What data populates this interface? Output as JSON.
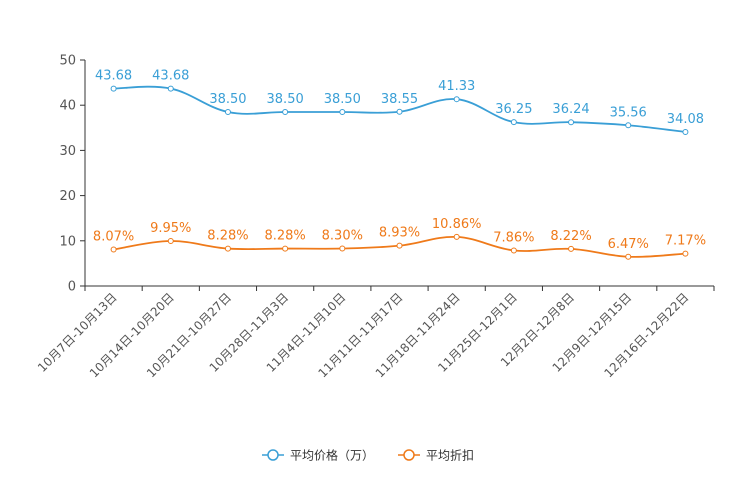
{
  "chart_data": {
    "type": "line",
    "title": "",
    "xlabel": "",
    "ylabel": "",
    "ylim": [
      0,
      50
    ],
    "yticks": [
      0,
      10,
      20,
      30,
      40,
      50
    ],
    "categories": [
      "10月7日-10月13日",
      "10月14日-10月20日",
      "10月21日-10月27日",
      "10月28日-11月3日",
      "11月4日-11月10日",
      "11月11日-11月17日",
      "11月18日-11月24日",
      "11月25日-12月1日",
      "12月2日-12月8日",
      "12月9日-12月15日",
      "12月16日-12月22日"
    ],
    "series": [
      {
        "name": "平均价格（万）",
        "color": "#3a9fd6",
        "values": [
          43.68,
          43.68,
          38.5,
          38.5,
          38.5,
          38.55,
          41.33,
          36.25,
          36.24,
          35.56,
          34.08
        ],
        "labels": [
          "43.68",
          "43.68",
          "38.50",
          "38.50",
          "38.50",
          "38.55",
          "41.33",
          "36.25",
          "36.24",
          "35.56",
          "34.08"
        ]
      },
      {
        "name": "平均折扣",
        "color": "#ef7a1a",
        "values": [
          8.07,
          9.95,
          8.28,
          8.28,
          8.3,
          8.93,
          10.86,
          7.86,
          8.22,
          6.47,
          7.17
        ],
        "labels": [
          "8.07%",
          "9.95%",
          "8.28%",
          "8.28%",
          "8.30%",
          "8.93%",
          "10.86%",
          "7.86%",
          "8.22%",
          "6.47%",
          "7.17%"
        ]
      }
    ],
    "legend": "bottom-center"
  }
}
